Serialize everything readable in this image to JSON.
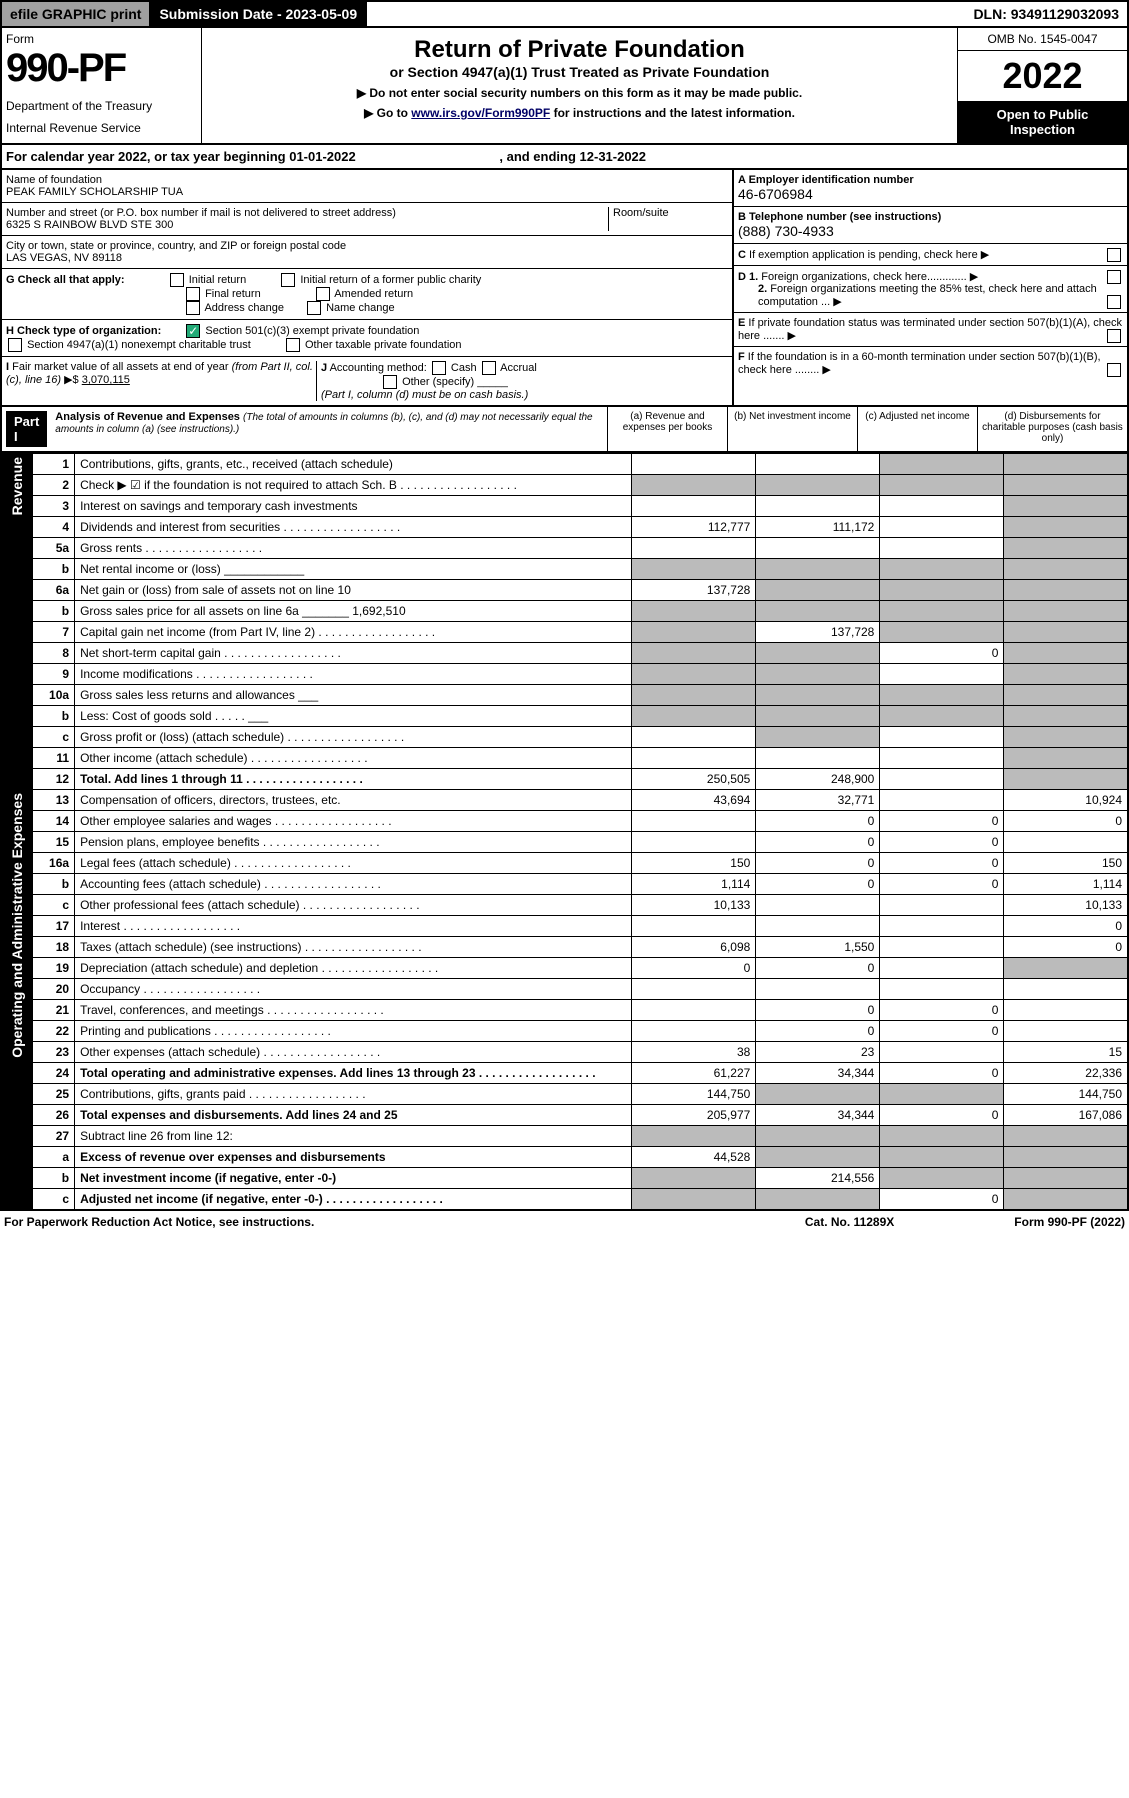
{
  "hdr": {
    "efile": "efile GRAPHIC print",
    "subdate": "Submission Date - 2023-05-09",
    "dln": "DLN: 93491129032093"
  },
  "top": {
    "form": "Form",
    "num": "990-PF",
    "dept": "Department of the Treasury",
    "irs": "Internal Revenue Service",
    "title": "Return of Private Foundation",
    "subtitle": "or Section 4947(a)(1) Trust Treated as Private Foundation",
    "note1": "▶ Do not enter social security numbers on this form as it may be made public.",
    "note2": "▶ Go to www.irs.gov/Form990PF for instructions and the latest information.",
    "omb": "OMB No. 1545-0047",
    "year": "2022",
    "open": "Open to Public Inspection"
  },
  "cal": {
    "line": "For calendar year 2022, or tax year beginning 01-01-2022",
    "end": ", and ending 12-31-2022"
  },
  "info": {
    "nof": "Name of foundation",
    "name": "PEAK FAMILY SCHOLARSHIP TUA",
    "addr_lbl": "Number and street (or P.O. box number if mail is not delivered to street address)",
    "room": "Room/suite",
    "addr": "6325 S RAINBOW BLVD STE 300",
    "city_lbl": "City or town, state or province, country, and ZIP or foreign postal code",
    "city": "LAS VEGAS, NV  89118",
    "a": "A Employer identification number",
    "ein": "46-6706984",
    "b": "B Telephone number (see instructions)",
    "phone": "(888) 730-4933",
    "c": "C If exemption application is pending, check here",
    "d1": "D 1. Foreign organizations, check here.............",
    "d2": "2. Foreign organizations meeting the 85% test, check here and attach computation ...",
    "e": "E If private foundation status was terminated under section 507(b)(1)(A), check here .......",
    "f": "F If the foundation is in a 60-month termination under section 507(b)(1)(B), check here ........"
  },
  "g": {
    "lbl": "G Check all that apply:",
    "o": [
      "Initial return",
      "Initial return of a former public charity",
      "Final return",
      "Amended return",
      "Address change",
      "Name change"
    ]
  },
  "h": {
    "lbl": "H Check type of organization:",
    "o": [
      "Section 501(c)(3) exempt private foundation",
      "Section 4947(a)(1) nonexempt charitable trust",
      "Other taxable private foundation"
    ]
  },
  "i": {
    "lbl": "I Fair market value of all assets at end of year (from Part II, col. (c), line 16) ▶$",
    "val": "3,070,115"
  },
  "j": {
    "lbl": "J Accounting method:",
    "o": [
      "Cash",
      "Accrual",
      "Other (specify)"
    ],
    "note": "(Part I, column (d) must be on cash basis.)"
  },
  "p1": {
    "hdr": "Part I",
    "title": "Analysis of Revenue and Expenses",
    "note": "(The total of amounts in columns (b), (c), and (d) may not necessarily equal the amounts in column (a) (see instructions).)",
    "ca": "(a) Revenue and expenses per books",
    "cb": "(b) Net investment income",
    "cc": "(c) Adjusted net income",
    "cd": "(d) Disbursements for charitable purposes (cash basis only)"
  },
  "side": {
    "rev": "Revenue",
    "exp": "Operating and Administrative Expenses"
  },
  "rows": [
    {
      "n": "1",
      "l": "Contributions, gifts, grants, etc., received (attach schedule)",
      "a": "",
      "b": "",
      "c": "s",
      "d": "s"
    },
    {
      "n": "2",
      "l": "Check ▶ ☑ if the foundation is not required to attach Sch. B",
      "dots": 1,
      "a": "s",
      "b": "s",
      "c": "s",
      "d": "s"
    },
    {
      "n": "3",
      "l": "Interest on savings and temporary cash investments",
      "a": "",
      "b": "",
      "c": "",
      "d": "s"
    },
    {
      "n": "4",
      "l": "Dividends and interest from securities",
      "dots": 1,
      "a": "112,777",
      "b": "111,172",
      "c": "",
      "d": "s"
    },
    {
      "n": "5a",
      "l": "Gross rents",
      "dots": 1,
      "a": "",
      "b": "",
      "c": "",
      "d": "s"
    },
    {
      "n": "b",
      "l": "Net rental income or (loss) ____________",
      "a": "s",
      "b": "s",
      "c": "s",
      "d": "s"
    },
    {
      "n": "6a",
      "l": "Net gain or (loss) from sale of assets not on line 10",
      "a": "137,728",
      "b": "s",
      "c": "s",
      "d": "s"
    },
    {
      "n": "b",
      "l": "Gross sales price for all assets on line 6a _______ 1,692,510",
      "a": "s",
      "b": "s",
      "c": "s",
      "d": "s"
    },
    {
      "n": "7",
      "l": "Capital gain net income (from Part IV, line 2)",
      "dots": 1,
      "a": "s",
      "b": "137,728",
      "c": "s",
      "d": "s"
    },
    {
      "n": "8",
      "l": "Net short-term capital gain",
      "dots": 1,
      "a": "s",
      "b": "s",
      "c": "0",
      "d": "s"
    },
    {
      "n": "9",
      "l": "Income modifications",
      "dots": 1,
      "a": "s",
      "b": "s",
      "c": "",
      "d": "s"
    },
    {
      "n": "10a",
      "l": "Gross sales less returns and allowances ___",
      "a": "s",
      "b": "s",
      "c": "s",
      "d": "s"
    },
    {
      "n": "b",
      "l": "Less: Cost of goods sold         .  .  .  .  .  ___",
      "a": "s",
      "b": "s",
      "c": "s",
      "d": "s"
    },
    {
      "n": "c",
      "l": "Gross profit or (loss) (attach schedule)",
      "dots": 1,
      "a": "",
      "b": "s",
      "c": "",
      "d": "s"
    },
    {
      "n": "11",
      "l": "Other income (attach schedule)",
      "dots": 1,
      "a": "",
      "b": "",
      "c": "",
      "d": "s"
    },
    {
      "n": "12",
      "l": "Total. Add lines 1 through 11",
      "dots": 1,
      "b1": 1,
      "a": "250,505",
      "b": "248,900",
      "c": "",
      "d": "s"
    },
    {
      "n": "13",
      "l": "Compensation of officers, directors, trustees, etc.",
      "a": "43,694",
      "b": "32,771",
      "c": "",
      "d": "10,924"
    },
    {
      "n": "14",
      "l": "Other employee salaries and wages",
      "dots": 1,
      "a": "",
      "b": "0",
      "c": "0",
      "d": "0"
    },
    {
      "n": "15",
      "l": "Pension plans, employee benefits",
      "dots": 1,
      "a": "",
      "b": "0",
      "c": "0",
      "d": ""
    },
    {
      "n": "16a",
      "l": "Legal fees (attach schedule)",
      "dots": 1,
      "a": "150",
      "b": "0",
      "c": "0",
      "d": "150"
    },
    {
      "n": "b",
      "l": "Accounting fees (attach schedule)",
      "dots": 1,
      "a": "1,114",
      "b": "0",
      "c": "0",
      "d": "1,114"
    },
    {
      "n": "c",
      "l": "Other professional fees (attach schedule)",
      "dots": 1,
      "a": "10,133",
      "b": "",
      "c": "",
      "d": "10,133"
    },
    {
      "n": "17",
      "l": "Interest",
      "dots": 1,
      "a": "",
      "b": "",
      "c": "",
      "d": "0"
    },
    {
      "n": "18",
      "l": "Taxes (attach schedule) (see instructions)",
      "dots": 1,
      "a": "6,098",
      "b": "1,550",
      "c": "",
      "d": "0"
    },
    {
      "n": "19",
      "l": "Depreciation (attach schedule) and depletion",
      "dots": 1,
      "a": "0",
      "b": "0",
      "c": "",
      "d": "s"
    },
    {
      "n": "20",
      "l": "Occupancy",
      "dots": 1,
      "a": "",
      "b": "",
      "c": "",
      "d": ""
    },
    {
      "n": "21",
      "l": "Travel, conferences, and meetings",
      "dots": 1,
      "a": "",
      "b": "0",
      "c": "0",
      "d": ""
    },
    {
      "n": "22",
      "l": "Printing and publications",
      "dots": 1,
      "a": "",
      "b": "0",
      "c": "0",
      "d": ""
    },
    {
      "n": "23",
      "l": "Other expenses (attach schedule)",
      "dots": 1,
      "a": "38",
      "b": "23",
      "c": "",
      "d": "15"
    },
    {
      "n": "24",
      "l": "Total operating and administrative expenses. Add lines 13 through 23",
      "dots": 1,
      "b1": 1,
      "a": "61,227",
      "b": "34,344",
      "c": "0",
      "d": "22,336"
    },
    {
      "n": "25",
      "l": "Contributions, gifts, grants paid",
      "dots": 1,
      "a": "144,750",
      "b": "s",
      "c": "s",
      "d": "144,750"
    },
    {
      "n": "26",
      "l": "Total expenses and disbursements. Add lines 24 and 25",
      "b1": 1,
      "a": "205,977",
      "b": "34,344",
      "c": "0",
      "d": "167,086"
    },
    {
      "n": "27",
      "l": "Subtract line 26 from line 12:",
      "a": "s",
      "b": "s",
      "c": "s",
      "d": "s"
    },
    {
      "n": "a",
      "l": "Excess of revenue over expenses and disbursements",
      "b1": 1,
      "a": "44,528",
      "b": "s",
      "c": "s",
      "d": "s"
    },
    {
      "n": "b",
      "l": "Net investment income (if negative, enter -0-)",
      "b1": 1,
      "a": "s",
      "b": "214,556",
      "c": "s",
      "d": "s"
    },
    {
      "n": "c",
      "l": "Adjusted net income (if negative, enter -0-)",
      "dots": 1,
      "b1": 1,
      "a": "s",
      "b": "s",
      "c": "0",
      "d": "s"
    }
  ],
  "ftr": {
    "l": "For Paperwork Reduction Act Notice, see instructions.",
    "m": "Cat. No. 11289X",
    "r": "Form 990-PF (2022)"
  }
}
